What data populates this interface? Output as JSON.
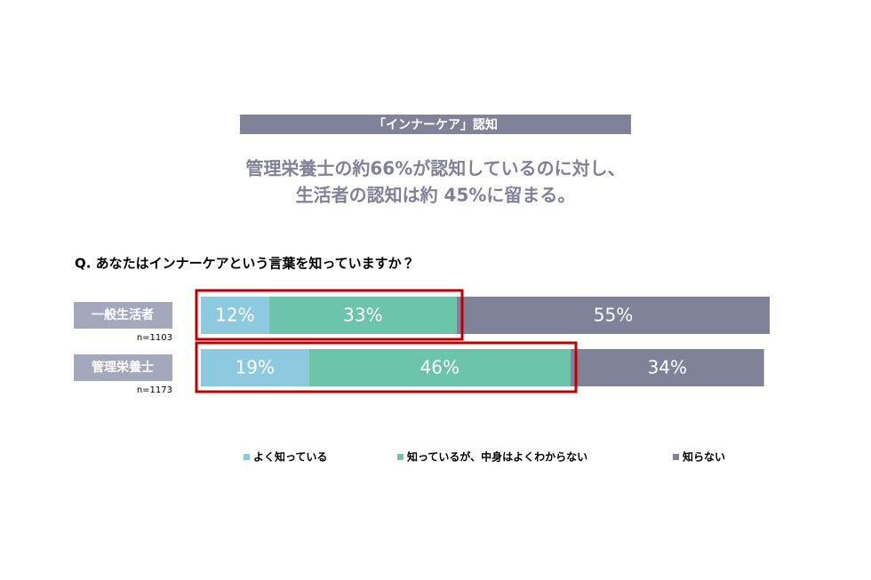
{
  "chart_data": {
    "type": "stacked-bar-horizontal",
    "title": "「インナーケア」認知",
    "subtitle": [
      "管理栄養士の約66%が認知しているのに対し、",
      "生活者の認知は約 45%に留まる。"
    ],
    "question": "Q. あなたはインナーケアという言葉を知っていますか？",
    "categories": [
      "一般生活者",
      "管理栄養士"
    ],
    "sample_sizes": [
      "n=1103",
      "n=1173"
    ],
    "xlim": [
      0,
      100
    ],
    "series": [
      {
        "name": "よく知っている",
        "color": "#8ecadf",
        "values": [
          12,
          19
        ],
        "value_labels": [
          "12%",
          "19%"
        ]
      },
      {
        "name": "知っているが、中身はよくわからない",
        "color": "#6cc4aa",
        "values": [
          33,
          46
        ],
        "value_labels": [
          "33%",
          "46%"
        ]
      },
      {
        "name": "知らない",
        "color": "#7f8299",
        "values": [
          55,
          34
        ],
        "value_labels": [
          "55%",
          "34%"
        ]
      }
    ]
  }
}
